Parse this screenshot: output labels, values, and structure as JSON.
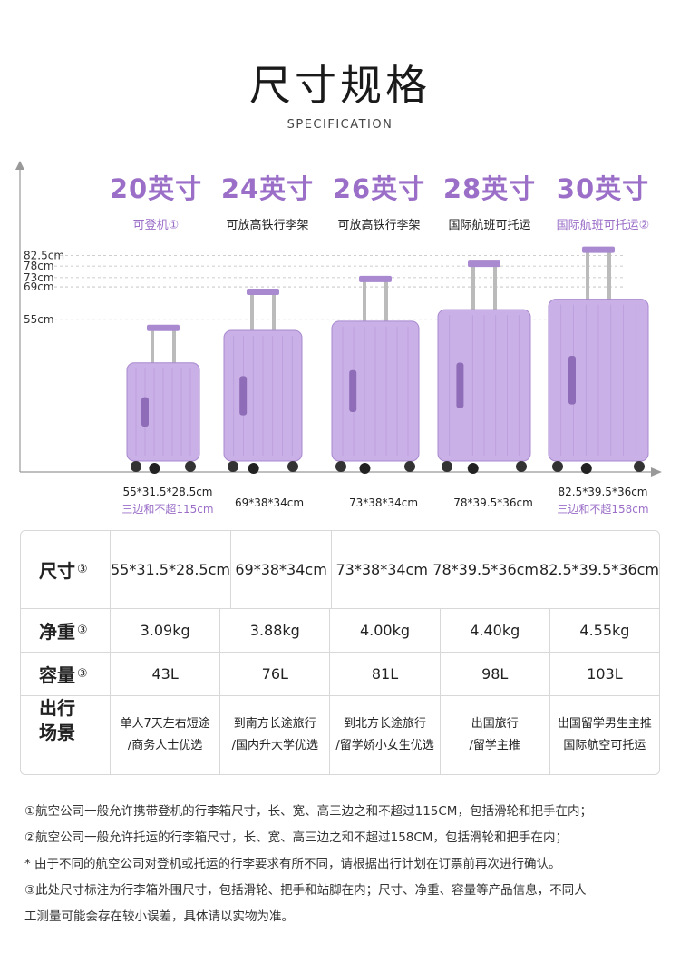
{
  "header": {
    "title": "尺寸规格",
    "subtitle": "SPECIFICATION"
  },
  "colors": {
    "accent": "#9b6fc8",
    "suitcase": "#c9b0e6",
    "suitcase_dark": "#a989cf",
    "grid": "#bdbdbd"
  },
  "chart_data": {
    "type": "bar",
    "ylabels": [
      "82.5cm",
      "78cm",
      "73cm",
      "69cm",
      "55cm"
    ],
    "categories": [
      "20英寸",
      "24英寸",
      "26英寸",
      "28英寸",
      "30英寸"
    ],
    "values": [
      55,
      69,
      73,
      78,
      82.5
    ]
  },
  "sizes": [
    {
      "label": "20英寸",
      "caption": "可登机①",
      "dim": "55*31.5*28.5cm",
      "note": "三边和不超115cm"
    },
    {
      "label": "24英寸",
      "caption": "可放高铁行李架",
      "dim": "69*38*34cm",
      "note": ""
    },
    {
      "label": "26英寸",
      "caption": "可放高铁行李架",
      "dim": "73*38*34cm",
      "note": ""
    },
    {
      "label": "28英寸",
      "caption": "国际航班可托运",
      "dim": "78*39.5*36cm",
      "note": ""
    },
    {
      "label": "30英寸",
      "caption": "国际航班可托运②",
      "dim": "82.5*39.5*36cm",
      "note": "三边和不超158cm"
    }
  ],
  "table": {
    "rows": [
      {
        "head": "尺寸",
        "sup": "③",
        "values": [
          "55*31.5*28.5cm",
          "69*38*34cm",
          "73*38*34cm",
          "78*39.5*36cm",
          "82.5*39.5*36cm"
        ]
      },
      {
        "head": "净重",
        "sup": "③",
        "values": [
          "3.09kg",
          "3.88kg",
          "4.00kg",
          "4.40kg",
          "4.55kg"
        ]
      },
      {
        "head": "容量",
        "sup": "③",
        "values": [
          "43L",
          "76L",
          "81L",
          "98L",
          "103L"
        ]
      }
    ],
    "scene": {
      "head1": "出行",
      "head2": "场景",
      "values": [
        [
          "单人7天左右短途",
          "/商务人士优选"
        ],
        [
          "到南方长途旅行",
          "/国内升大学优选"
        ],
        [
          "到北方长途旅行",
          "/留学娇小女生优选"
        ],
        [
          "出国旅行",
          "/留学主推"
        ],
        [
          "出国留学男生主推",
          "国际航空可托运"
        ]
      ]
    }
  },
  "notes": [
    "①航空公司一般允许携带登机的行李箱尺寸，长、宽、高三边之和不超过115CM，包括滑轮和把手在内；",
    "②航空公司一般允许托运的行李箱尺寸，长、宽、高三边之和不超过158CM，包括滑轮和把手在内；",
    "* 由于不同的航空公司对登机或托运的行李要求有所不同，请根据出行计划在订票前再次进行确认。",
    "③此处尺寸标注为行李箱外围尺寸，包括滑轮、把手和站脚在内；尺寸、净重、容量等产品信息，不同人",
    "工测量可能会存在较小误差，具体请以实物为准。"
  ]
}
